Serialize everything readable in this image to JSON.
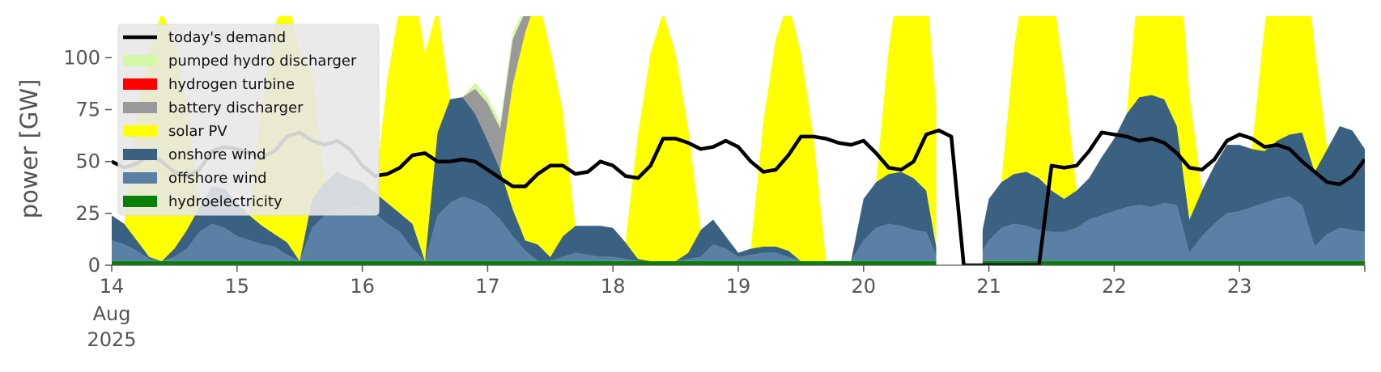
{
  "chart_data": {
    "type": "area",
    "ylabel": "power [GW]",
    "ylim": [
      0,
      120
    ],
    "xlim": [
      0,
      10
    ],
    "y_ticks": [
      0,
      25,
      50,
      75,
      100
    ],
    "x_ticks": [
      {
        "day": 0,
        "label": "14",
        "sub": [
          "Aug",
          "2025"
        ]
      },
      {
        "day": 1,
        "label": "15"
      },
      {
        "day": 2,
        "label": "16"
      },
      {
        "day": 3,
        "label": "17"
      },
      {
        "day": 4,
        "label": "18"
      },
      {
        "day": 5,
        "label": "19"
      },
      {
        "day": 6,
        "label": "20"
      },
      {
        "day": 7,
        "label": "21"
      },
      {
        "day": 8,
        "label": "22"
      },
      {
        "day": 9,
        "label": "23"
      }
    ],
    "legend_position": "upper-left",
    "legend": [
      {
        "label": "today's demand",
        "kind": "line",
        "color": "#000000"
      },
      {
        "label": "pumped hydro discharger",
        "kind": "patch",
        "color": "#d4f8a8"
      },
      {
        "label": "hydrogen turbine",
        "kind": "patch",
        "color": "#ff0000"
      },
      {
        "label": "battery discharger",
        "kind": "patch",
        "color": "#999999"
      },
      {
        "label": "solar PV",
        "kind": "patch",
        "color": "#ffff00"
      },
      {
        "label": "onshore wind",
        "kind": "patch",
        "color": "#3b6182"
      },
      {
        "label": "offshore wind",
        "kind": "patch",
        "color": "#5b80a5"
      },
      {
        "label": "hydroelectricity",
        "kind": "patch",
        "color": "#088008"
      }
    ],
    "x": [
      0,
      0.1,
      0.2,
      0.3,
      0.4,
      0.5,
      0.6,
      0.7,
      0.8,
      0.9,
      1,
      1.1,
      1.2,
      1.3,
      1.4,
      1.5,
      1.6,
      1.7,
      1.8,
      1.9,
      2,
      2.1,
      2.2,
      2.3,
      2.4,
      2.5,
      2.6,
      2.7,
      2.8,
      2.9,
      3,
      3.1,
      3.2,
      3.3,
      3.4,
      3.5,
      3.6,
      3.7,
      3.8,
      3.9,
      4,
      4.1,
      4.2,
      4.3,
      4.4,
      4.5,
      4.6,
      4.7,
      4.8,
      4.9,
      5,
      5.1,
      5.2,
      5.3,
      5.4,
      5.5,
      5.6,
      5.7,
      5.8,
      5.9,
      6,
      6.1,
      6.2,
      6.3,
      6.4,
      6.5,
      6.6,
      6.7,
      6.8,
      6.9,
      7,
      7.1,
      7.2,
      7.3,
      7.4,
      7.5,
      7.6,
      7.7,
      7.8,
      7.9,
      8,
      8.1,
      8.2,
      8.3,
      8.4,
      8.5,
      8.6,
      8.7,
      8.8,
      8.9,
      9,
      9.1,
      9.2,
      9.3,
      9.4,
      9.5,
      9.6,
      9.7,
      9.8,
      9.9,
      10
    ],
    "series": [
      {
        "name": "hydroelectricity",
        "color": "#088008",
        "values": [
          2,
          2,
          2,
          2,
          2,
          2,
          2,
          2,
          2,
          2,
          2,
          2,
          2,
          2,
          2,
          2,
          2,
          2,
          2,
          2,
          2,
          2,
          2,
          2,
          2,
          2,
          2,
          2,
          2,
          2,
          2,
          2,
          2,
          2,
          2,
          2,
          2,
          2,
          2,
          2,
          2,
          2,
          2,
          2,
          2,
          2,
          2,
          2,
          2,
          2,
          2,
          2,
          2,
          2,
          2,
          2,
          2,
          2,
          2,
          2,
          2,
          2,
          2,
          2,
          2,
          2,
          2,
          2,
          2,
          2,
          2,
          2,
          2,
          2,
          2,
          2,
          2,
          2,
          2,
          2,
          2,
          2,
          2,
          2,
          2,
          2,
          2,
          2,
          2,
          2,
          2,
          2,
          2,
          2,
          2,
          2,
          2,
          2,
          2,
          2,
          2
        ]
      },
      {
        "name": "offshore wind",
        "color": "#5b80a5",
        "values": [
          10,
          8,
          5,
          1,
          0,
          2,
          6,
          14,
          18,
          16,
          12,
          10,
          8,
          7,
          3,
          0,
          16,
          22,
          25,
          26,
          26,
          23,
          18,
          14,
          6,
          0,
          22,
          28,
          31,
          29,
          26,
          20,
          12,
          5,
          0,
          0,
          2,
          4,
          3,
          2,
          2,
          1,
          0,
          0,
          0,
          0,
          1,
          2,
          8,
          6,
          2,
          3,
          4,
          4,
          2,
          0,
          0,
          0,
          0,
          0,
          10,
          16,
          18,
          17,
          15,
          14,
          0,
          0,
          0,
          0,
          10,
          16,
          18,
          17,
          15,
          14,
          14,
          16,
          20,
          22,
          24,
          26,
          27,
          26,
          28,
          27,
          4,
          12,
          18,
          23,
          24,
          26,
          28,
          30,
          31,
          27,
          7,
          13,
          16,
          15,
          14
        ]
      },
      {
        "name": "onshore wind",
        "color": "#3b6182",
        "values": [
          12,
          10,
          5,
          1,
          0,
          4,
          9,
          12,
          18,
          19,
          16,
          12,
          9,
          6,
          6,
          0,
          14,
          16,
          18,
          14,
          12,
          10,
          10,
          9,
          12,
          0,
          40,
          50,
          48,
          42,
          32,
          24,
          13,
          5,
          8,
          2,
          10,
          13,
          14,
          15,
          14,
          8,
          1,
          0,
          0,
          0,
          3,
          13,
          12,
          6,
          2,
          3,
          3,
          3,
          3,
          0,
          0,
          0,
          0,
          0,
          20,
          22,
          24,
          26,
          25,
          20,
          0,
          0,
          0,
          0,
          20,
          22,
          24,
          26,
          25,
          20,
          16,
          18,
          20,
          28,
          35,
          45,
          52,
          54,
          50,
          38,
          16,
          22,
          28,
          33,
          32,
          28,
          25,
          28,
          30,
          35,
          36,
          41,
          49,
          48,
          40
        ]
      },
      {
        "name": "solar PV",
        "color": "#ffff00",
        "values": [
          0,
          0,
          60,
          100,
          120,
          100,
          60,
          0,
          0,
          0,
          0,
          0,
          60,
          100,
          120,
          100,
          60,
          0,
          0,
          0,
          0,
          0,
          60,
          100,
          120,
          100,
          60,
          0,
          0,
          0,
          0,
          0,
          60,
          100,
          120,
          100,
          60,
          0,
          0,
          0,
          0,
          0,
          60,
          100,
          120,
          100,
          60,
          0,
          0,
          0,
          0,
          0,
          60,
          100,
          120,
          100,
          60,
          0,
          0,
          0,
          0,
          0,
          60,
          100,
          120,
          100,
          60,
          0,
          0,
          0,
          0,
          0,
          60,
          100,
          120,
          100,
          60,
          0,
          0,
          0,
          0,
          0,
          60,
          100,
          120,
          100,
          60,
          0,
          0,
          0,
          0,
          0,
          60,
          100,
          120,
          100,
          60,
          0,
          0,
          0,
          0
        ]
      },
      {
        "name": "battery discharger",
        "color": "#999999",
        "values": [
          0,
          0,
          0,
          0,
          0,
          0,
          0,
          0,
          0,
          0,
          0,
          0,
          0,
          0,
          0,
          0,
          0,
          0,
          0,
          0,
          0,
          0,
          0,
          0,
          0,
          0,
          0,
          0,
          0,
          12,
          18,
          20,
          22,
          10,
          0,
          0,
          0,
          0,
          0,
          0,
          0,
          0,
          0,
          0,
          0,
          0,
          0,
          0,
          0,
          0,
          0,
          0,
          0,
          0,
          0,
          0,
          0,
          0,
          0,
          0,
          0,
          0,
          0,
          0,
          0,
          0,
          0,
          0,
          0,
          0,
          0,
          0,
          0,
          0,
          0,
          0,
          0,
          0,
          0,
          0,
          0,
          0,
          0,
          0,
          0,
          0,
          0,
          0,
          0,
          0,
          0,
          0,
          0,
          0,
          0,
          0,
          0,
          0,
          0,
          0,
          0
        ]
      },
      {
        "name": "hydrogen turbine",
        "color": "#ff0000",
        "values": [
          0,
          0,
          0,
          0,
          0,
          0,
          0,
          0,
          0,
          0,
          0,
          0,
          0,
          0,
          0,
          0,
          0,
          0,
          0,
          0,
          0,
          0,
          0,
          0,
          0,
          0,
          0,
          0,
          0,
          0,
          0,
          0,
          0,
          0,
          0,
          0,
          0,
          0,
          0,
          0,
          0,
          0,
          0,
          0,
          0,
          0,
          0,
          0,
          0,
          0,
          0,
          0,
          0,
          0,
          0,
          0,
          0,
          0,
          0,
          0,
          0,
          0,
          0,
          0,
          0,
          0,
          0,
          0,
          0,
          0,
          0,
          0,
          0,
          0,
          0,
          0,
          0,
          0,
          0,
          0,
          0,
          0,
          0,
          0,
          0,
          0,
          0,
          0,
          0,
          0,
          0,
          0,
          0,
          0,
          0,
          0,
          0,
          0,
          0,
          0,
          0
        ]
      },
      {
        "name": "pumped hydro discharger",
        "color": "#d4f8a8",
        "values": [
          0,
          0,
          0,
          0,
          0,
          0,
          0,
          0,
          0,
          0,
          0,
          0,
          0,
          0,
          0,
          0,
          0,
          0,
          0,
          0,
          0,
          0,
          0,
          0,
          0,
          0,
          0,
          0,
          0,
          3,
          3,
          3,
          3,
          3,
          0,
          0,
          0,
          0,
          0,
          0,
          0,
          0,
          0,
          0,
          0,
          0,
          0,
          0,
          0,
          0,
          0,
          0,
          0,
          0,
          0,
          0,
          0,
          0,
          0,
          0,
          0,
          0,
          0,
          0,
          0,
          0,
          0,
          0,
          0,
          0,
          0,
          0,
          0,
          0,
          0,
          0,
          0,
          0,
          0,
          0,
          0,
          0,
          0,
          0,
          0,
          0,
          0,
          0,
          0,
          0,
          0,
          0,
          0,
          0,
          0,
          0,
          0,
          0,
          0,
          0,
          0
        ]
      }
    ],
    "demand": {
      "name": "today's demand",
      "color": "#000000",
      "values": [
        50,
        47,
        49,
        53,
        50,
        45,
        43,
        46,
        55,
        57,
        56,
        54,
        52,
        55,
        62,
        64,
        60,
        58,
        60,
        56,
        48,
        43,
        44,
        47,
        53,
        54,
        50,
        50,
        51,
        50,
        46,
        42,
        38,
        38,
        44,
        48,
        48,
        44,
        45,
        50,
        48,
        43,
        42,
        48,
        61,
        61,
        59,
        56,
        57,
        60,
        57,
        50,
        45,
        46,
        53,
        62,
        62,
        61,
        59,
        58,
        60,
        54,
        47,
        46,
        50,
        63,
        65,
        62,
        0,
        0,
        0,
        0,
        0,
        0,
        0,
        48,
        47,
        48,
        55,
        64,
        63,
        62,
        60,
        61,
        59,
        54,
        47,
        46,
        51,
        60,
        63,
        61,
        57,
        58,
        56,
        50,
        45,
        40,
        39,
        43,
        51
      ]
    },
    "gap_regions": [
      {
        "start": 6.58,
        "end": 6.95,
        "label": "blank"
      }
    ]
  }
}
